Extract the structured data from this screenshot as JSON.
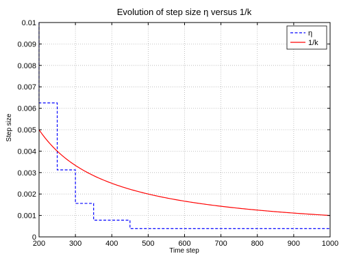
{
  "chart_data": {
    "type": "line",
    "title": "Evolution of step size η versus 1/k",
    "xlabel": "Time step",
    "ylabel": "Step size",
    "xlim": [
      200,
      1000
    ],
    "ylim": [
      0,
      0.01
    ],
    "x_ticks": [
      "200",
      "300",
      "400",
      "500",
      "600",
      "700",
      "800",
      "900",
      "1000"
    ],
    "y_ticks": [
      "0",
      "0.001",
      "0.002",
      "0.003",
      "0.004",
      "0.005",
      "0.006",
      "0.007",
      "0.008",
      "0.009",
      "0.01"
    ],
    "grid": true,
    "legend_position": "top-right",
    "series": [
      {
        "name": "η",
        "style": "dashed",
        "color": "#0000ff",
        "x": [
          200,
          200,
          250,
          250,
          300,
          300,
          350,
          350,
          450,
          450,
          1000
        ],
        "y": [
          0.01,
          0.00625,
          0.00625,
          0.003125,
          0.003125,
          0.0015625,
          0.0015625,
          0.00078125,
          0.00078125,
          0.000390625,
          0.000390625
        ]
      },
      {
        "name": "1/k",
        "style": "solid",
        "color": "#ff0000",
        "function": "1/k",
        "x_range": [
          200,
          1000
        ]
      }
    ]
  }
}
